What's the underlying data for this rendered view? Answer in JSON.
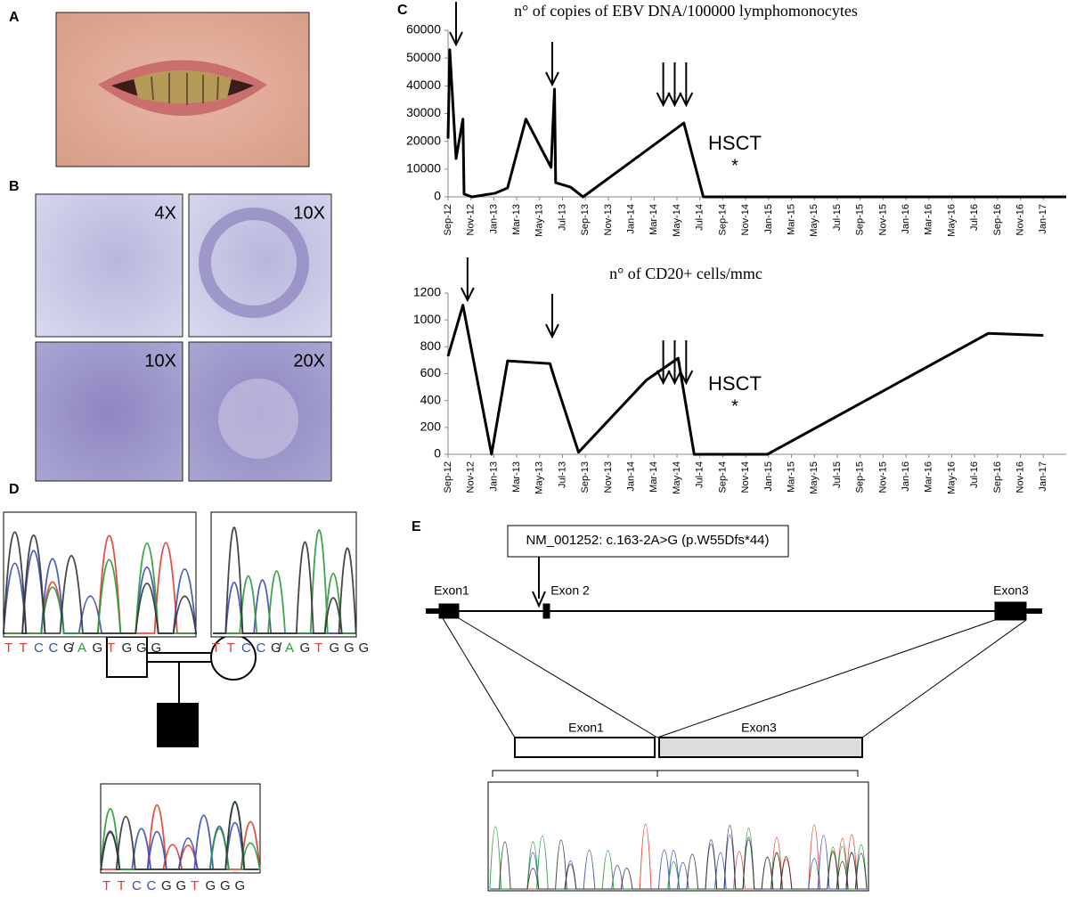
{
  "panel_labels": [
    "A",
    "B",
    "C",
    "D",
    "E"
  ],
  "micrographs": [
    "4X",
    "10X",
    "10X",
    "20X"
  ],
  "chart_data": [
    {
      "type": "line",
      "title": "n° of copies of EBV DNA/100000 lymphomonocytes",
      "xlim": [
        0,
        54
      ],
      "xticks": [
        {
          "value": 0,
          "label": "Sep-12"
        },
        {
          "value": 2,
          "label": "Nov-12"
        },
        {
          "value": 4,
          "label": "Jan-13"
        },
        {
          "value": 6,
          "label": "Mar-13"
        },
        {
          "value": 8,
          "label": "May-13"
        },
        {
          "value": 10,
          "label": "Jul-13"
        },
        {
          "value": 12,
          "label": "Sep-13"
        },
        {
          "value": 14,
          "label": "Nov-13"
        },
        {
          "value": 16,
          "label": "Jan-14"
        },
        {
          "value": 18,
          "label": "Mar-14"
        },
        {
          "value": 20,
          "label": "May-14"
        },
        {
          "value": 22,
          "label": "Jul-14"
        },
        {
          "value": 24,
          "label": "Sep-14"
        },
        {
          "value": 26,
          "label": "Nov-14"
        },
        {
          "value": 28,
          "label": "Jan-15"
        },
        {
          "value": 30,
          "label": "Mar-15"
        },
        {
          "value": 32,
          "label": "May-15"
        },
        {
          "value": 34,
          "label": "Jul-15"
        },
        {
          "value": 36,
          "label": "Sep-15"
        },
        {
          "value": 38,
          "label": "Nov-15"
        },
        {
          "value": 40,
          "label": "Jan-16"
        },
        {
          "value": 42,
          "label": "Mar-16"
        },
        {
          "value": 44,
          "label": "May-16"
        },
        {
          "value": 46,
          "label": "Jul-16"
        },
        {
          "value": 48,
          "label": "Sep-16"
        },
        {
          "value": 50,
          "label": "Nov-16"
        },
        {
          "value": 52,
          "label": "Jan-17"
        }
      ],
      "ylim": [
        0,
        60000
      ],
      "yticks": [
        0,
        10000,
        20000,
        30000,
        40000,
        50000,
        60000
      ],
      "series": [
        {
          "color": "#000000",
          "x": [
            0,
            0.15,
            0.7,
            1.3,
            1.4,
            2.1,
            4.1,
            5.2,
            6.8,
            9.0,
            9.3,
            9.4,
            10.7,
            11.8,
            20.6,
            22.3,
            54
          ],
          "values": [
            21000,
            53000,
            13800,
            28000,
            1000,
            0,
            1300,
            3200,
            28000,
            10600,
            38800,
            5100,
            3500,
            0,
            26600,
            0,
            0
          ]
        }
      ],
      "arrows_x": [
        0.7,
        9.1,
        18.8,
        19.8,
        20.8
      ],
      "annotations": [
        "HSCT",
        "*"
      ]
    },
    {
      "type": "line",
      "title": "n° of CD20+ cells/mmc",
      "xlim": [
        0,
        54
      ],
      "xticks": [
        {
          "value": 0,
          "label": "Sep-12"
        },
        {
          "value": 2,
          "label": "Nov-12"
        },
        {
          "value": 4,
          "label": "Jan-13"
        },
        {
          "value": 6,
          "label": "Mar-13"
        },
        {
          "value": 8,
          "label": "May-13"
        },
        {
          "value": 10,
          "label": "Jul-13"
        },
        {
          "value": 12,
          "label": "Sep-13"
        },
        {
          "value": 14,
          "label": "Nov-13"
        },
        {
          "value": 16,
          "label": "Jan-14"
        },
        {
          "value": 18,
          "label": "Mar-14"
        },
        {
          "value": 20,
          "label": "May-14"
        },
        {
          "value": 22,
          "label": "Jul-14"
        },
        {
          "value": 24,
          "label": "Sep-14"
        },
        {
          "value": 26,
          "label": "Nov-14"
        },
        {
          "value": 28,
          "label": "Jan-15"
        },
        {
          "value": 30,
          "label": "Mar-15"
        },
        {
          "value": 32,
          "label": "May-15"
        },
        {
          "value": 34,
          "label": "Jul-15"
        },
        {
          "value": 36,
          "label": "Sep-15"
        },
        {
          "value": 38,
          "label": "Nov-15"
        },
        {
          "value": 40,
          "label": "Jan-16"
        },
        {
          "value": 42,
          "label": "Mar-16"
        },
        {
          "value": 44,
          "label": "May-16"
        },
        {
          "value": 46,
          "label": "Jul-16"
        },
        {
          "value": 48,
          "label": "Sep-16"
        },
        {
          "value": 50,
          "label": "Nov-16"
        },
        {
          "value": 52,
          "label": "Jan-17"
        }
      ],
      "ylim": [
        0,
        1200
      ],
      "yticks": [
        0,
        200,
        400,
        600,
        800,
        1000,
        1200
      ],
      "series": [
        {
          "color": "#000000",
          "x": [
            0,
            1.3,
            3.8,
            5.2,
            8.9,
            9.3,
            11.4,
            17.3,
            20.1,
            21.5,
            27.9,
            47.2,
            52
          ],
          "values": [
            730,
            1110,
            0,
            695,
            675,
            565,
            15,
            550,
            715,
            0,
            0,
            900,
            885
          ]
        }
      ],
      "arrows_x": [
        1.7,
        9.1,
        18.8,
        19.8,
        20.8
      ],
      "annotations": [
        "HSCT",
        "*"
      ]
    }
  ],
  "sequencing": {
    "base_colors": {
      "T": "#e03c31",
      "C": "#3a4fb0",
      "G": "#222222",
      "A": "#2a9a3a",
      "/": "#222222"
    },
    "father": [
      "T",
      "T",
      "C",
      "C",
      "G",
      "/",
      "A",
      "G",
      "T",
      "G",
      "G",
      "G"
    ],
    "mother": [
      "T",
      "T",
      "C",
      "C",
      "G",
      "/",
      "A",
      "G",
      "T",
      "G",
      "G",
      "G"
    ],
    "patient": [
      "T",
      "T",
      "C",
      "C",
      "G",
      "G",
      "T",
      "G",
      "G",
      "G"
    ]
  },
  "gene": {
    "variant": "NM_001252: c.163-2A>G (p.W55Dfs*44)",
    "exons": [
      "Exon1",
      "Exon 2",
      "Exon3"
    ],
    "transcript": [
      "Exon1",
      "Exon3"
    ]
  }
}
